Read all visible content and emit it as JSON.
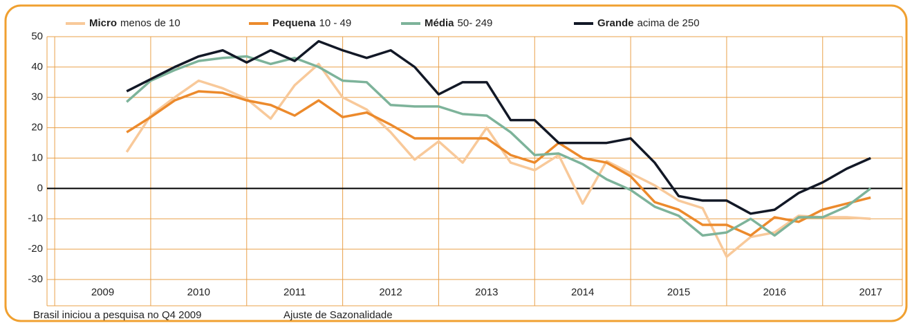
{
  "chart_data": {
    "type": "line",
    "footnotes": [
      "Brasil iniciou a pesquisa no Q4 2009",
      "Ajuste de Sazonalidade"
    ],
    "x": [
      2009.75,
      2010.0,
      2010.25,
      2010.5,
      2010.75,
      2011.0,
      2011.25,
      2011.5,
      2011.75,
      2012.0,
      2012.25,
      2012.5,
      2012.75,
      2013.0,
      2013.25,
      2013.5,
      2013.75,
      2014.0,
      2014.25,
      2014.5,
      2014.75,
      2015.0,
      2015.25,
      2015.5,
      2015.75,
      2016.0,
      2016.25,
      2016.5,
      2016.75,
      2017.0,
      2017.25,
      2017.5
    ],
    "series": [
      {
        "name": "Micro",
        "description": "menos de 10",
        "color": "#f8c99a",
        "values": [
          12,
          24,
          30,
          35.5,
          33,
          29.5,
          23,
          34,
          41,
          30,
          26,
          18.5,
          9.5,
          15.5,
          8.5,
          20,
          8.5,
          6,
          11,
          -5,
          9,
          5,
          1,
          -4,
          -6.5,
          -22.5,
          -16,
          -14.5,
          -9,
          -9.5,
          -9.5,
          -10
        ]
      },
      {
        "name": "Pequena",
        "description": "10 - 49",
        "color": "#ec8a2c",
        "values": [
          18.5,
          23.5,
          29,
          32,
          31.5,
          29,
          27.5,
          24,
          29,
          23.5,
          25,
          21,
          16.5,
          16.5,
          16.5,
          16.5,
          11,
          8.5,
          15,
          10,
          8.5,
          4,
          -4.5,
          -7,
          -12,
          -12,
          -15.5,
          -9.5,
          -11,
          -7,
          -5,
          -3
        ]
      },
      {
        "name": "Média",
        "description": "50- 249",
        "color": "#7db39a",
        "values": [
          28.5,
          35.5,
          39,
          42,
          43,
          43.5,
          41,
          43,
          40,
          35.5,
          35,
          27.5,
          27,
          27,
          24.5,
          24,
          18.5,
          11,
          11.5,
          8,
          3,
          -0.5,
          -6,
          -9,
          -15.5,
          -14.5,
          -10,
          -15.5,
          -9.5,
          -9.5,
          -6,
          0
        ]
      },
      {
        "name": "Grande",
        "description": "acima de 250",
        "color": "#121826",
        "values": [
          32,
          36,
          40,
          43.5,
          45.5,
          41.5,
          45.5,
          42,
          48.5,
          45.5,
          43,
          45.5,
          40,
          31,
          35,
          35,
          22.5,
          22.5,
          15,
          15,
          15,
          16.5,
          8.5,
          -2.5,
          -4,
          -4,
          -8.3,
          -7,
          -1.5,
          2,
          6.5,
          10
        ]
      }
    ],
    "xlim": [
      2008.92,
      2017.83
    ],
    "xticks": [
      2009,
      2010,
      2011,
      2012,
      2013,
      2014,
      2015,
      2016,
      2017
    ],
    "ylim": [
      -30,
      50
    ],
    "yticks": [
      50,
      40,
      30,
      20,
      10,
      0,
      -10,
      -20,
      -30
    ],
    "grid": true,
    "grid_color": "#e9a04a",
    "border_color": "#f0a030",
    "zero_line_color": "#000000"
  }
}
